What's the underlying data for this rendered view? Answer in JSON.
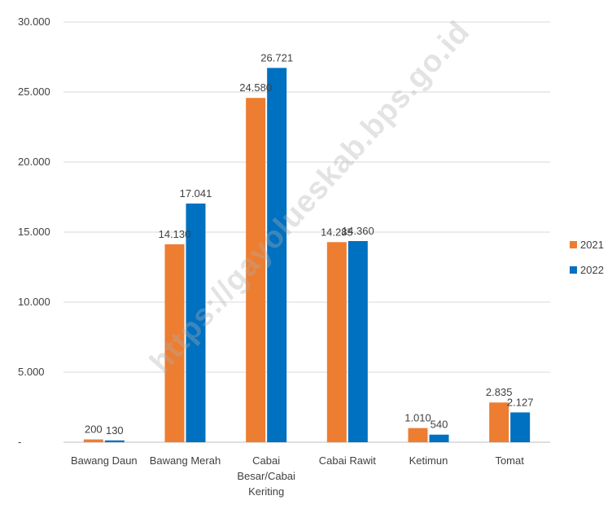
{
  "watermark": "https://gayolueskab.bps.go.id",
  "chart_data": {
    "type": "bar",
    "categories": [
      [
        "Bawang Daun"
      ],
      [
        "Bawang Merah"
      ],
      [
        "Cabai",
        "Besar/Cabai",
        "Keriting"
      ],
      [
        "Cabai Rawit"
      ],
      [
        "Ketimun"
      ],
      [
        "Tomat"
      ]
    ],
    "series": [
      {
        "name": "2021",
        "color": "#ED7D31",
        "values": [
          200,
          14130,
          24580,
          14285,
          1010,
          2835
        ],
        "labels": [
          "200",
          "14.130",
          "24.580",
          "14.285",
          "1.010",
          "2.835"
        ]
      },
      {
        "name": "2022",
        "color": "#0070C0",
        "values": [
          130,
          17041,
          26721,
          14360,
          540,
          2127
        ],
        "labels": [
          "130",
          "17.041",
          "26.721",
          "14.360",
          "540",
          "2.127"
        ]
      }
    ],
    "ylim": [
      0,
      30000
    ],
    "yticks": [
      0,
      5000,
      10000,
      15000,
      20000,
      25000,
      30000
    ],
    "ytick_labels": [
      "-",
      "5.000",
      "10.000",
      "15.000",
      "20.000",
      "25.000",
      "30.000"
    ],
    "grid": true,
    "legend": "right"
  }
}
